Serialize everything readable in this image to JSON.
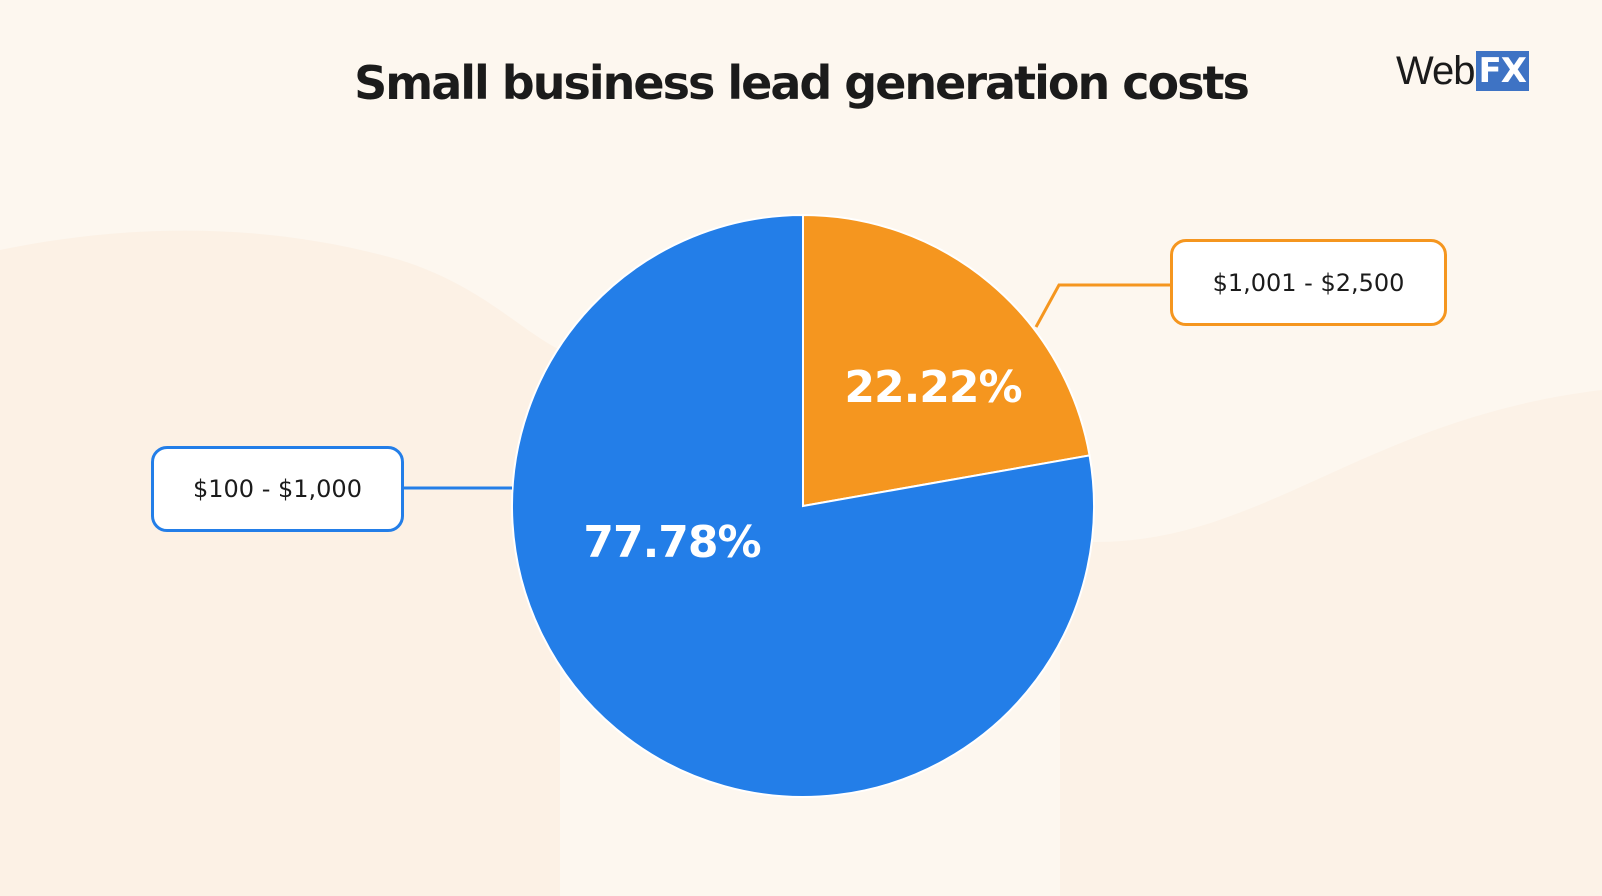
{
  "brand": {
    "name_part": "Web",
    "badge_part": "FX",
    "badge_color": "#3e73c4"
  },
  "chart_data": {
    "type": "pie",
    "title": "Small business lead generation costs",
    "categories": [
      "$100 - $1,000",
      "$1,001 - $2,500"
    ],
    "values": [
      77.78,
      22.22
    ],
    "labels": [
      "77.78%",
      "22.22%"
    ],
    "colors": [
      "#237ee8",
      "#f5961f"
    ],
    "legend": "callouts"
  }
}
